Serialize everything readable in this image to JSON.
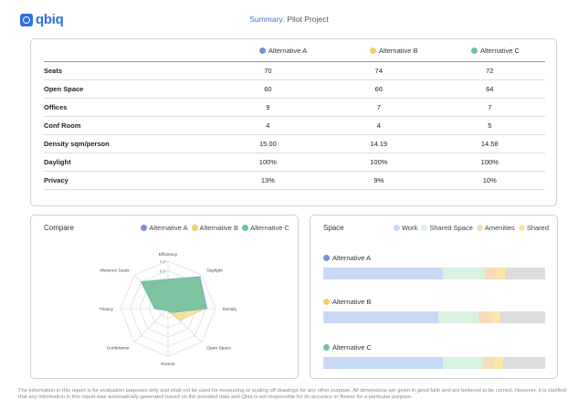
{
  "logo": {
    "text": "qbiq"
  },
  "header": {
    "summary_label": "Summary:",
    "project_name": "Pilot Project"
  },
  "alternatives": [
    {
      "name": "Alternative A",
      "color": "#7b8fd6"
    },
    {
      "name": "Alternative B",
      "color": "#f5cf6e"
    },
    {
      "name": "Alternative C",
      "color": "#6fc3a0"
    }
  ],
  "table": {
    "rows": [
      {
        "label": "Seats",
        "values": [
          "70",
          "74",
          "72"
        ]
      },
      {
        "label": "Open Space",
        "values": [
          "60",
          "66",
          "64"
        ]
      },
      {
        "label": "Offices",
        "values": [
          "9",
          "7",
          "7"
        ]
      },
      {
        "label": "Conf Room",
        "values": [
          "4",
          "4",
          "5"
        ]
      },
      {
        "label": "Density sqm/person",
        "values": [
          "15.00",
          "14.19",
          "14.58"
        ]
      },
      {
        "label": "Daylight",
        "values": [
          "100%",
          "100%",
          "100%"
        ]
      },
      {
        "label": "Privacy",
        "values": [
          "13%",
          "9%",
          "10%"
        ]
      }
    ]
  },
  "compare": {
    "title": "Compare",
    "legend": [
      "Alternative A",
      "Alternative B",
      "Alternative C"
    ]
  },
  "chart_data": {
    "type": "radar",
    "axes": [
      "Efficiency",
      "Daylight",
      "Density",
      "Open Space",
      "Rooms",
      "Conference",
      "Privacy",
      "Conference Seats"
    ],
    "ticks": [
      "0.2",
      "0.4",
      "0.6",
      "0.8",
      "1.0"
    ],
    "range": [
      0,
      1
    ],
    "series": [
      {
        "name": "Alternative A",
        "color": "#7b8fd6",
        "values": [
          0.62,
          0.95,
          0.82,
          0.1,
          0.05,
          0.05,
          0.28,
          0.8
        ]
      },
      {
        "name": "Alternative B",
        "color": "#f5cf6e",
        "values": [
          0.6,
          0.92,
          0.78,
          0.35,
          0.06,
          0.05,
          0.22,
          0.75
        ]
      },
      {
        "name": "Alternative C",
        "color": "#6fc3a0",
        "values": [
          0.62,
          0.93,
          0.8,
          0.12,
          0.05,
          0.05,
          0.28,
          0.8
        ]
      }
    ]
  },
  "space": {
    "title": "Space",
    "categories": [
      {
        "name": "Work",
        "color": "#c9d9f5"
      },
      {
        "name": "Shared Space",
        "color": "#d8f2e2"
      },
      {
        "name": "Amenities",
        "color": "#f7dcbc"
      },
      {
        "name": "Shared",
        "color": "#fbe6a8"
      }
    ],
    "rest_color": "#dcdcdc",
    "bars": [
      {
        "name": "Alternative A",
        "segments": [
          0.54,
          0.19,
          0.05,
          0.04
        ]
      },
      {
        "name": "Alternative B",
        "segments": [
          0.52,
          0.18,
          0.06,
          0.04
        ]
      },
      {
        "name": "Alternative C",
        "segments": [
          0.54,
          0.18,
          0.05,
          0.04
        ]
      }
    ]
  },
  "footer": {
    "disclaimer": "The information in this report is for evaluation purposes only and shall not be used for measuring or scaling off drawings for any other purpose. All dimensions are given in good faith and are believed to be correct. However, it is clarified that any information in this report was automatically generated based on the provided data and Qbiq is not responsible for its accuracy or fitness for a particular purpose."
  }
}
